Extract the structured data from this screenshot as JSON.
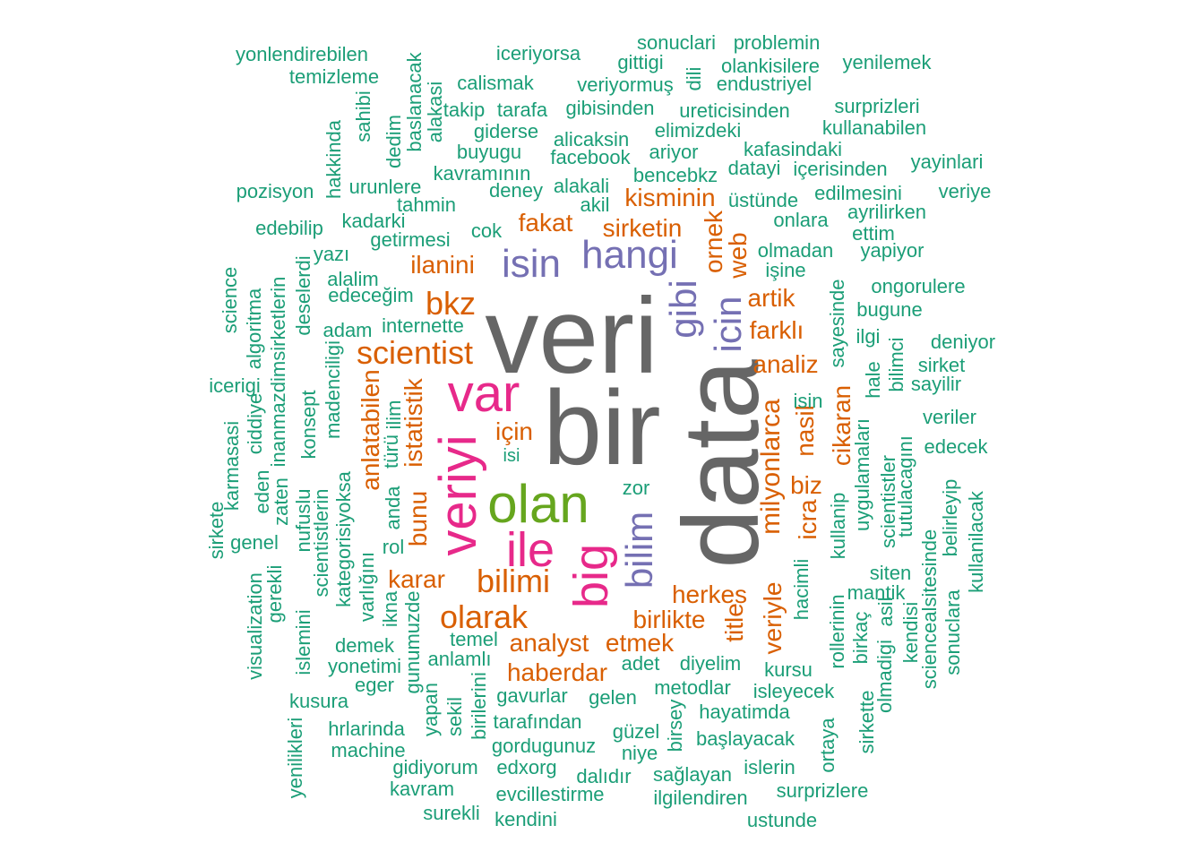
{
  "palette": {
    "large": "#666666",
    "magenta": "#e7298a",
    "green": "#66a61e",
    "purple": "#7570b3",
    "orange": "#d95f02",
    "teal": "#1b9e77"
  },
  "big_words": {
    "veri": "veri",
    "bir": "bir",
    "data": "data",
    "var": "var",
    "veriyi": "veriyi",
    "olan": "olan",
    "ile": "ile",
    "big": "big",
    "isin": "isin",
    "hangi": "hangi",
    "gibi": "gibi",
    "icin": "icin",
    "bilim": "bilim"
  },
  "mid_words": {
    "bkz": "bkz",
    "scientist": "scientist",
    "fakat": "fakat",
    "kisminin": "kisminin",
    "sirketin": "sirketin",
    "ilanini": "ilanini",
    "artik": "artik",
    "farkli": "farklı",
    "analiz": "analiz",
    "ornek": "ornek",
    "web": "web",
    "milyonlarca": "milyonlarca",
    "nasil": "nasil",
    "cikaran": "cikaran",
    "biz": "biz",
    "icra": "icra",
    "istatistik": "istatistik",
    "anlatabilen": "anlatabilen",
    "icin2": "için",
    "bunu": "bunu",
    "karar": "karar",
    "bilimi": "bilimi",
    "olarak": "olarak",
    "herkes": "herkes",
    "birlikte": "birlikte",
    "analyst": "analyst",
    "etmek": "etmek",
    "haberdar": "haberdar",
    "title": "title",
    "veriyle": "veriyle"
  },
  "small_words": [
    "yonlendirebilen",
    "temizleme",
    "iceriyorsa",
    "calismak",
    "sonuclari",
    "problemin",
    "gittigi",
    "olankisilere",
    "yenilemek",
    "veriyormuş",
    "endustriyel",
    "dili",
    "takip",
    "tarafa",
    "gibisinden",
    "ureticisinden",
    "surprizleri",
    "kullanabilen",
    "giderse",
    "alicaksin",
    "elimizdeki",
    "kafasindaki",
    "buyugu",
    "ariyor",
    "facebook",
    "kavramının",
    "bencebkz",
    "datayi",
    "içerisinden",
    "yayinlari",
    "pozisyon",
    "urunlere",
    "deney",
    "alakali",
    "üstünde",
    "edilmesini",
    "veriye",
    "tahmin",
    "akil",
    "onlara",
    "ayrilirken",
    "edebilip",
    "kadarki",
    "ettim",
    "getirmesi",
    "cok",
    "yapiyor",
    "olmadan",
    "işine",
    "yazı",
    "alalim",
    "ongorulere",
    "edeceğim",
    "bugune",
    "adam",
    "internette",
    "ilgi",
    "deniyor",
    "sirket",
    "sayilir",
    "icerigi",
    "veriler",
    "edecek",
    "isin",
    "isi",
    "zor",
    "genel",
    "rol",
    "demek",
    "temel",
    "anlamlı",
    "adet",
    "diyelim",
    "kursu",
    "yonetimi",
    "eger",
    "gavurlar",
    "gelen",
    "metodlar",
    "isleyecek",
    "kusura",
    "hayatimda",
    "tarafından",
    "hrlarinda",
    "güzel",
    "başlayacak",
    "machine",
    "gordugunuz",
    "niye",
    "gidiyorum",
    "edxorg",
    "dalıdır",
    "sağlayan",
    "islerin",
    "kavram",
    "evcillestirme",
    "ilgilendiren",
    "surprizlere",
    "surekli",
    "kendini",
    "ustunde",
    "siten",
    "mantik",
    "yonlendirebilen"
  ],
  "vertical_words": [
    "baslanacak",
    "alakasi",
    "sahibi",
    "dedim",
    "hakkinda",
    "science",
    "algoritma",
    "inanmazdimsirketlerin",
    "deselerdi",
    "madenciligi",
    "konsept",
    "ciddiye",
    "karmasasi",
    "eden",
    "zaten",
    "nufuslu",
    "scientistlerin",
    "kategorisiyoksa",
    "varlığını",
    "ikna",
    "anda",
    "türü",
    "ilim",
    "sirkete",
    "visualization",
    "gerekli",
    "islemini",
    "yenilikleri",
    "gunumuzde",
    "yapan",
    "sekil",
    "birilerini",
    "birsey",
    "ortaya",
    "sirkette",
    "sayesinde",
    "hale",
    "bilimci",
    "uygulamaları",
    "scientistler",
    "tutulacagını",
    "kullanip",
    "hacimli",
    "rollerinin",
    "birkaç",
    "olmadigi",
    "asil",
    "kendisi",
    "sciencealsitesinde",
    "belirleyip",
    "kullanilacak",
    "sonuclara"
  ]
}
